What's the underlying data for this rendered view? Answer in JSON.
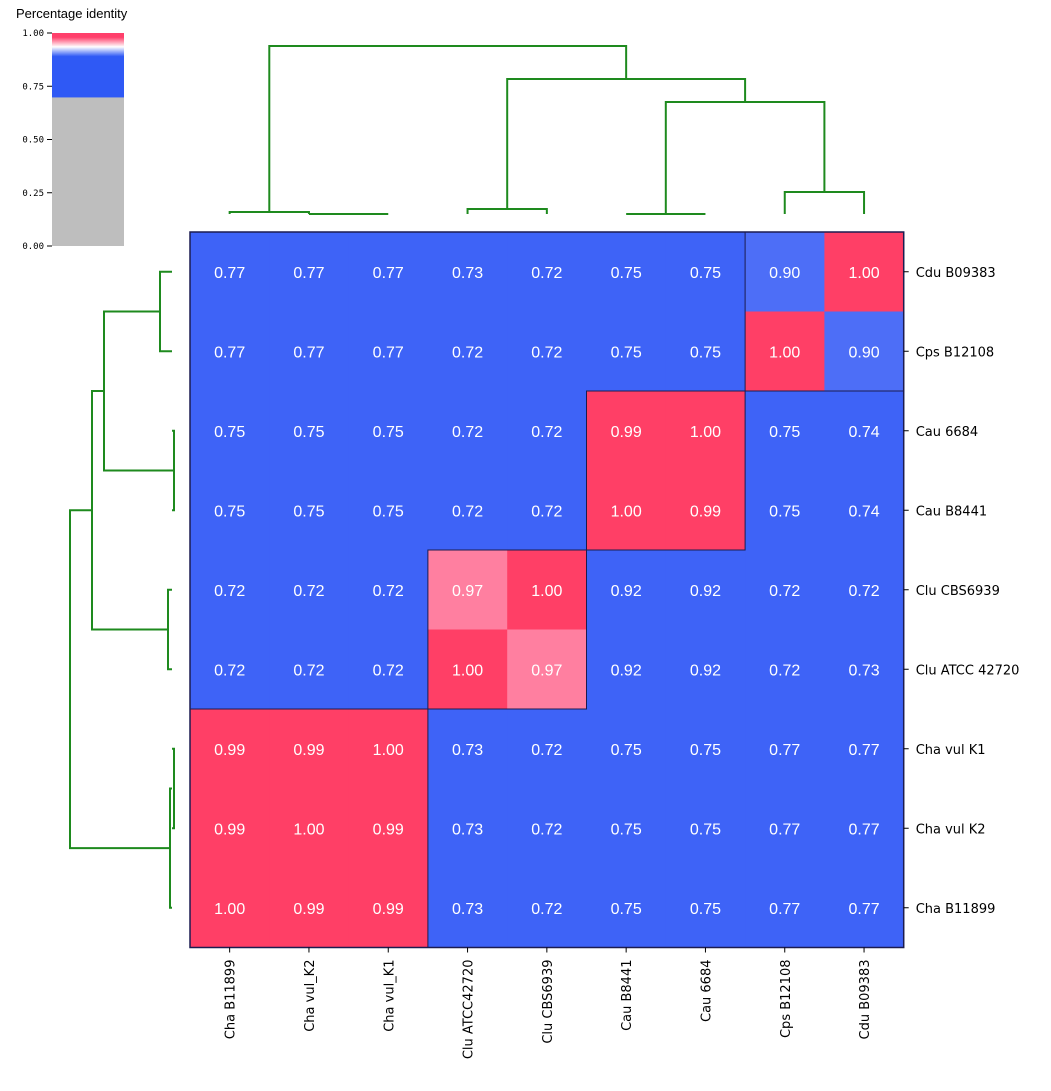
{
  "legend": {
    "title": "Percentage identity",
    "ticks": [
      "1.00",
      "0.75",
      "0.50",
      "0.25",
      "0.00"
    ],
    "tick_values": [
      1.0,
      0.75,
      0.5,
      0.25,
      0.0
    ],
    "colors": {
      "low": "#bebebe",
      "mid": "#2f59f5",
      "high": "#ff3f6b"
    }
  },
  "colors": {
    "dendrogram": "#1e8a1e",
    "cell_low": "#3e63f7",
    "cell_high": "#ff3f66",
    "cell_high_soft": "#ff7fa0",
    "cell_mid": "#4d6ef7",
    "cell_text": "#ffffff",
    "border": "#1c1c50"
  },
  "chart_data": {
    "type": "heatmap",
    "title": "",
    "xlabel": "",
    "ylabel": "",
    "x_labels": [
      "Cha B11899",
      "Cha vul_K2",
      "Cha vul_K1",
      "Clu ATCC42720",
      "Clu CBS6939",
      "Cau B8441",
      "Cau 6684",
      "Cps B12108",
      "Cdu B09383"
    ],
    "y_labels": [
      "Cdu B09383",
      "Cps B12108",
      "Cau 6684",
      "Cau B8441",
      "Clu CBS6939",
      "Clu ATCC 42720",
      "Cha vul K1",
      "Cha vul K2",
      "Cha B11899"
    ],
    "values": [
      [
        "0.77",
        "0.77",
        "0.77",
        "0.73",
        "0.72",
        "0.75",
        "0.75",
        "0.90",
        "1.00"
      ],
      [
        "0.77",
        "0.77",
        "0.77",
        "0.72",
        "0.72",
        "0.75",
        "0.75",
        "1.00",
        "0.90"
      ],
      [
        "0.75",
        "0.75",
        "0.75",
        "0.72",
        "0.72",
        "0.99",
        "1.00",
        "0.75",
        "0.74"
      ],
      [
        "0.75",
        "0.75",
        "0.75",
        "0.72",
        "0.72",
        "1.00",
        "0.99",
        "0.75",
        "0.74"
      ],
      [
        "0.72",
        "0.72",
        "0.72",
        "0.97",
        "1.00",
        "0.92",
        "0.92",
        "0.72",
        "0.72"
      ],
      [
        "0.72",
        "0.72",
        "0.72",
        "1.00",
        "0.97",
        "0.92",
        "0.92",
        "0.72",
        "0.73"
      ],
      [
        "0.99",
        "0.99",
        "1.00",
        "0.73",
        "0.72",
        "0.75",
        "0.75",
        "0.77",
        "0.77"
      ],
      [
        "0.99",
        "1.00",
        "0.99",
        "0.73",
        "0.72",
        "0.75",
        "0.75",
        "0.77",
        "0.77"
      ],
      [
        "1.00",
        "0.99",
        "0.99",
        "0.73",
        "0.72",
        "0.75",
        "0.75",
        "0.77",
        "0.77"
      ]
    ],
    "color_range": [
      0.0,
      1.0
    ],
    "legend_placement": "top-left",
    "dendrogram_top": true,
    "dendrogram_left": true
  }
}
